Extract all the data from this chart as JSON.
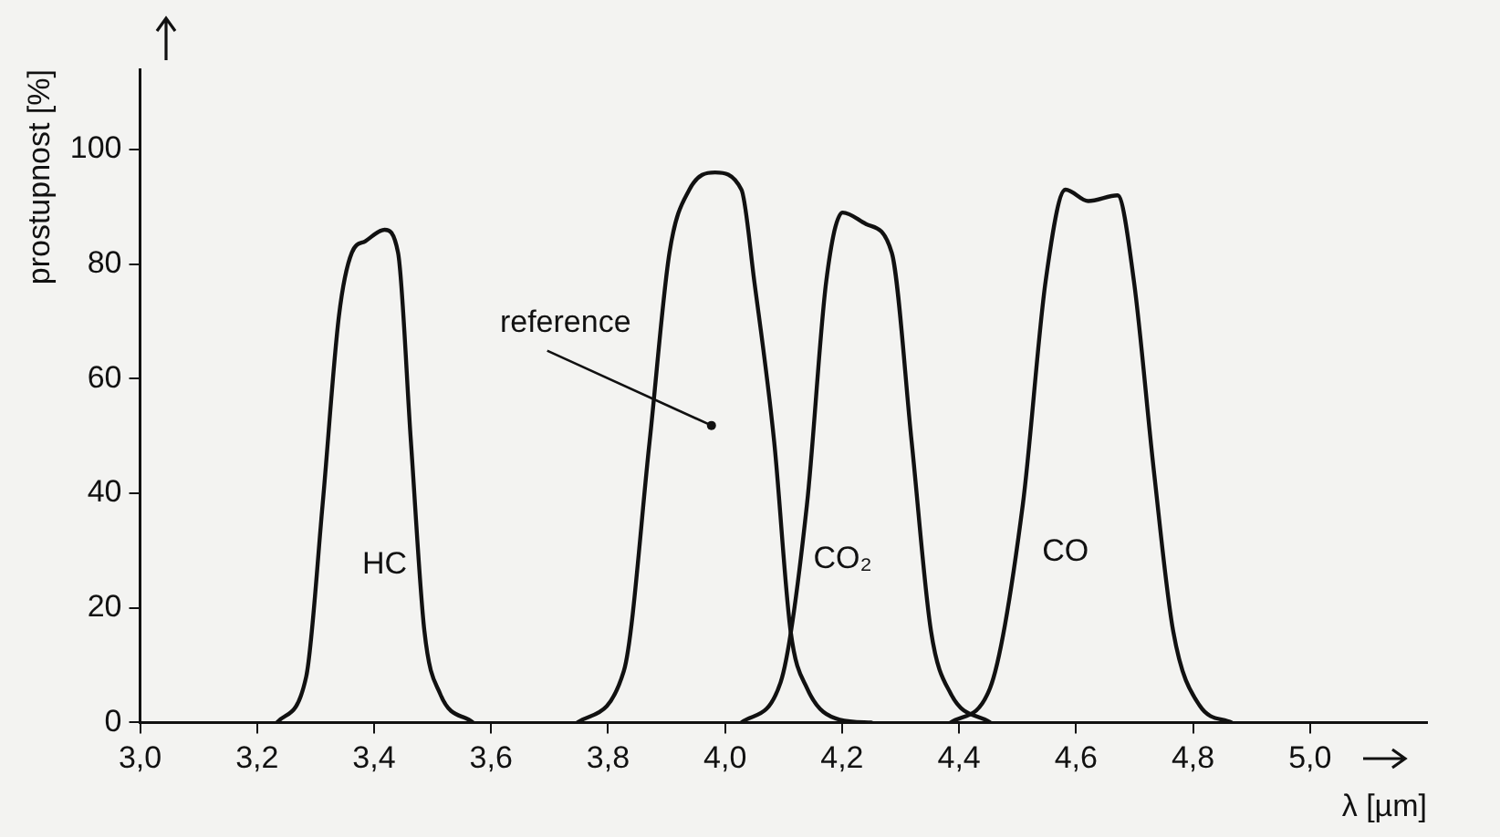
{
  "chart_data": {
    "type": "line",
    "xlabel": "λ [µm]",
    "ylabel": "prostupnost [%]",
    "xlim": [
      3.0,
      5.2
    ],
    "ylim": [
      0,
      114
    ],
    "xticks": [
      {
        "value": 3.0,
        "label": "3,0"
      },
      {
        "value": 3.2,
        "label": "3,2"
      },
      {
        "value": 3.4,
        "label": "3,4"
      },
      {
        "value": 3.6,
        "label": "3,6"
      },
      {
        "value": 3.8,
        "label": "3,8"
      },
      {
        "value": 4.0,
        "label": "4,0"
      },
      {
        "value": 4.2,
        "label": "4,2"
      },
      {
        "value": 4.4,
        "label": "4,4"
      },
      {
        "value": 4.6,
        "label": "4,6"
      },
      {
        "value": 4.8,
        "label": "4,8"
      },
      {
        "value": 5.0,
        "label": "5,0"
      }
    ],
    "yticks": [
      0,
      20,
      40,
      60,
      80,
      100
    ],
    "grid": false,
    "legend": false,
    "marker": "none",
    "line_style": "solid",
    "series": [
      {
        "name": "HC",
        "color": "#111111",
        "x": [
          3.234,
          3.284,
          3.312,
          3.34,
          3.362,
          3.385,
          3.418,
          3.441,
          3.463,
          3.486,
          3.513,
          3.569
        ],
        "values": [
          0,
          8,
          38,
          71,
          82,
          84,
          86,
          82,
          49,
          16,
          5,
          0
        ]
      },
      {
        "name": "reference",
        "color": "#111111",
        "x": [
          3.748,
          3.827,
          3.871,
          3.905,
          3.939,
          3.983,
          4.028,
          4.05,
          4.084,
          4.112,
          4.14,
          4.196,
          4.25
        ],
        "values": [
          0,
          9,
          49,
          82,
          93,
          96,
          93,
          77,
          49,
          16,
          6,
          0.5,
          0
        ]
      },
      {
        "name": "CO₂",
        "color": "#111111",
        "x": [
          4.028,
          4.095,
          4.14,
          4.173,
          4.201,
          4.241,
          4.285,
          4.319,
          4.352,
          4.386,
          4.453
        ],
        "values": [
          0,
          7,
          38,
          77,
          89,
          87,
          82,
          49,
          16,
          5,
          0
        ]
      },
      {
        "name": "CO",
        "color": "#111111",
        "x": [
          4.386,
          4.453,
          4.509,
          4.548,
          4.582,
          4.621,
          4.671,
          4.699,
          4.733,
          4.766,
          4.811,
          4.866
        ],
        "values": [
          0,
          6,
          38,
          77,
          93,
          91,
          92,
          77,
          44,
          16,
          3,
          0
        ]
      }
    ]
  }
}
